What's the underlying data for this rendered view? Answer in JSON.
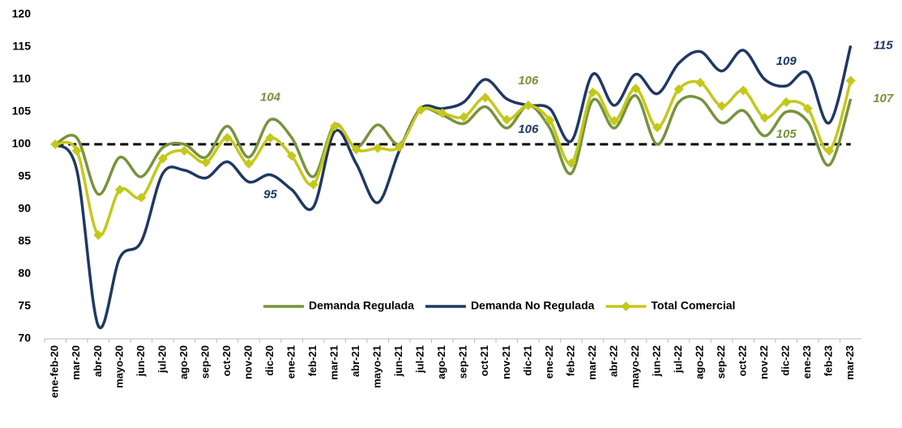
{
  "chart_data": {
    "type": "line",
    "categories": [
      "ene-feb-20",
      "mar-20",
      "abr-20",
      "mayo-20",
      "jun-20",
      "jul-20",
      "ago-20",
      "sep-20",
      "oct-20",
      "nov-20",
      "dic-20",
      "ene-21",
      "feb-21",
      "mar-21",
      "abr-21",
      "mayo-21",
      "jun-21",
      "jul-21",
      "ago-21",
      "sep-21",
      "oct-21",
      "nov-21",
      "dic-21",
      "ene-22",
      "feb-22",
      "mar-22",
      "abr-22",
      "mayo-22",
      "jun-22",
      "jul-22",
      "ago-22",
      "sep-22",
      "oct-22",
      "nov-22",
      "dic-22",
      "ene-23",
      "feb-23",
      "mar-23"
    ],
    "series": [
      {
        "name": "Demanda Regulada",
        "color": "#77933c",
        "marker": "none",
        "values": [
          100,
          101,
          92.3,
          98,
          95,
          99.5,
          100,
          98,
          102.8,
          98,
          103.8,
          101,
          95,
          103,
          99.5,
          103,
          100,
          105.3,
          104.5,
          103.2,
          105.8,
          102.5,
          106,
          102.5,
          95.5,
          106.8,
          102.5,
          107.5,
          100,
          106.5,
          107,
          103.3,
          105.2,
          101.3,
          105,
          103.5,
          96.8,
          107
        ],
        "value_labels": [
          null,
          null,
          null,
          null,
          null,
          null,
          null,
          null,
          null,
          null,
          "104",
          null,
          null,
          null,
          null,
          null,
          null,
          null,
          null,
          null,
          null,
          null,
          "106",
          null,
          null,
          null,
          null,
          null,
          null,
          null,
          null,
          null,
          null,
          null,
          "105",
          null,
          null,
          "107"
        ]
      },
      {
        "name": "Demanda No Regulada",
        "color": "#1f3864",
        "marker": "none",
        "values": [
          100,
          96,
          72,
          82.5,
          85,
          95.5,
          96,
          94.8,
          97.3,
          94.2,
          95.3,
          93,
          90.3,
          102,
          97,
          91,
          99,
          105.5,
          105.5,
          106.5,
          110,
          107,
          106,
          105.5,
          100.5,
          110.8,
          106,
          110.8,
          107.8,
          112.5,
          114.3,
          111.3,
          114.5,
          110,
          109,
          111,
          103.3,
          115.2
        ],
        "value_labels": [
          null,
          null,
          null,
          null,
          null,
          null,
          null,
          null,
          null,
          null,
          "95",
          null,
          null,
          null,
          null,
          null,
          null,
          null,
          null,
          null,
          null,
          null,
          "106",
          null,
          null,
          null,
          null,
          null,
          null,
          null,
          null,
          null,
          null,
          null,
          "109",
          null,
          null,
          "115"
        ]
      },
      {
        "name": "Total Comercial",
        "color": "#c4c81a",
        "marker": "diamond",
        "values": [
          100,
          99,
          86,
          93,
          91.8,
          97.8,
          99,
          97.2,
          101,
          97,
          101,
          98.2,
          93.8,
          102.8,
          99.2,
          99.4,
          99.6,
          105.3,
          104.8,
          104.2,
          107.2,
          103.8,
          106,
          103.7,
          97.1,
          108,
          103.6,
          108.6,
          102.6,
          108.5,
          109.5,
          105.9,
          108.3,
          104.1,
          106.5,
          105.5,
          99,
          109.8
        ]
      }
    ],
    "ylim": [
      70,
      120
    ],
    "yticks": [
      70,
      75,
      80,
      85,
      90,
      95,
      100,
      105,
      110,
      115,
      120
    ],
    "reference_line": 100,
    "legend": "bottom-right",
    "grid": false
  }
}
